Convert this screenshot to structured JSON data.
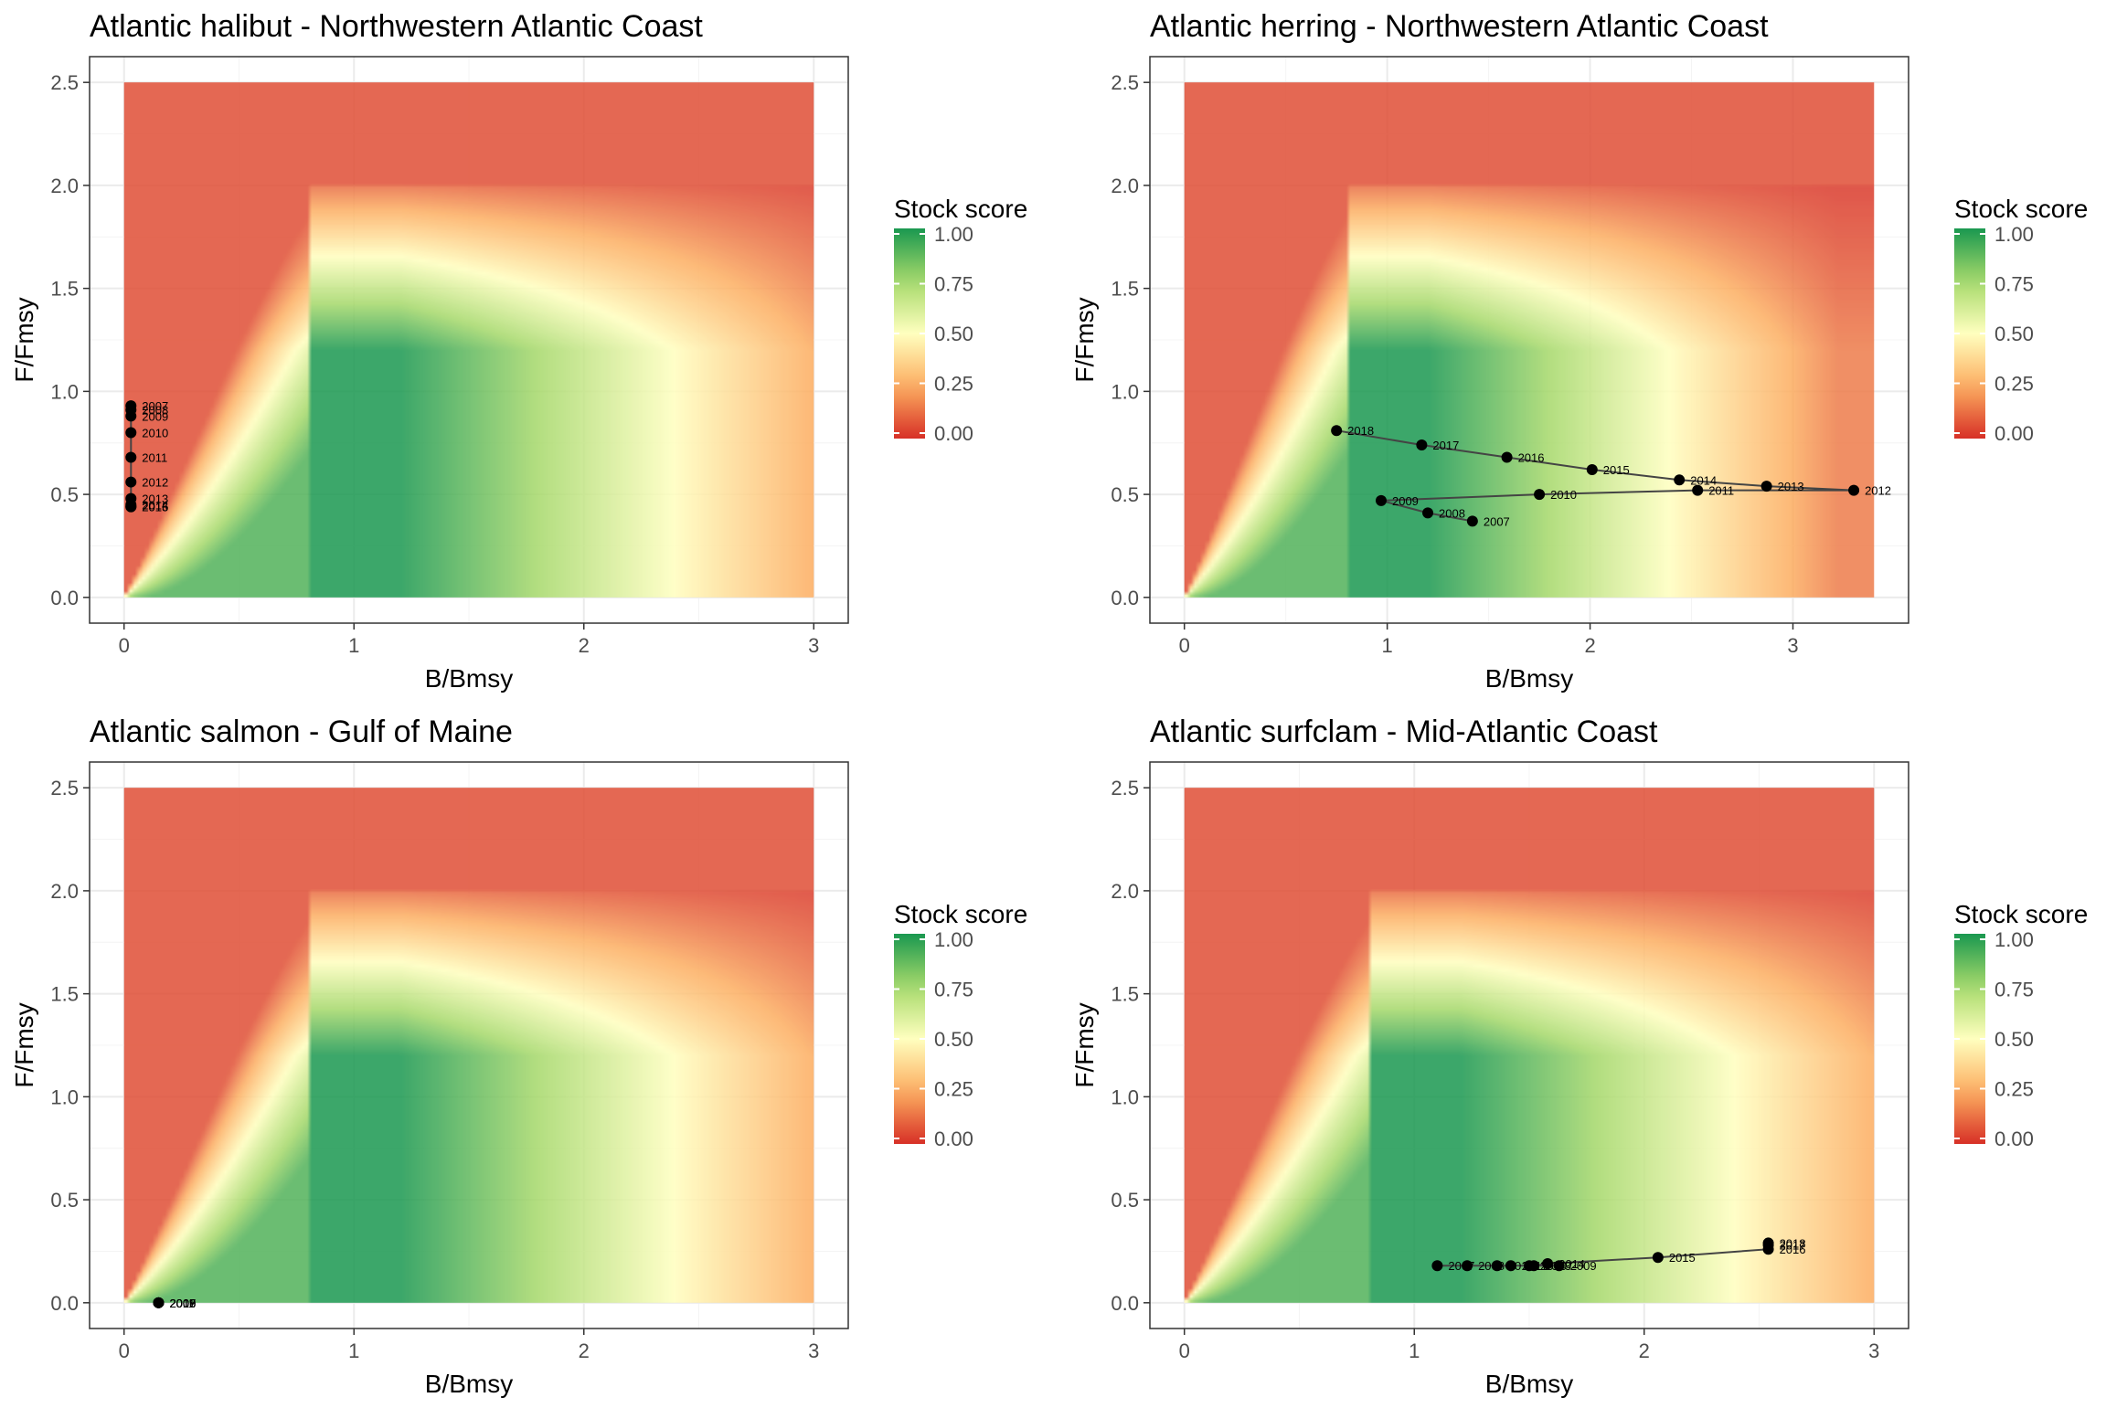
{
  "colors": {
    "score_gradient": [
      "#d73027",
      "#fdae61",
      "#ffffbf",
      "#a6d96a",
      "#1a9850"
    ],
    "panel_border": "#333333",
    "grid_major": "#ebebeb",
    "point": "#000000",
    "path": "#444444"
  },
  "legend": {
    "title": "Stock score",
    "ticks": [
      "1.00",
      "0.75",
      "0.50",
      "0.25",
      "0.00"
    ]
  },
  "chart_data": [
    {
      "type": "scatter",
      "title": "Atlantic halibut - Northwestern Atlantic Coast",
      "xlabel": "B/Bmsy",
      "ylabel": "F/Fmsy",
      "xlim": [
        0,
        3
      ],
      "ylim": [
        0,
        2.5
      ],
      "xticks": [
        "0",
        "1",
        "2",
        "3"
      ],
      "yticks": [
        "0.0",
        "0.5",
        "1.0",
        "1.5",
        "2.0",
        "2.5"
      ],
      "background": "stock score heatmap",
      "points": [
        {
          "year": "2007",
          "x": 0.03,
          "y": 0.93
        },
        {
          "year": "2008",
          "x": 0.03,
          "y": 0.91
        },
        {
          "year": "2009",
          "x": 0.03,
          "y": 0.88
        },
        {
          "year": "2010",
          "x": 0.03,
          "y": 0.8
        },
        {
          "year": "2011",
          "x": 0.03,
          "y": 0.68
        },
        {
          "year": "2012",
          "x": 0.03,
          "y": 0.56
        },
        {
          "year": "2013",
          "x": 0.03,
          "y": 0.48
        },
        {
          "year": "2014",
          "x": 0.03,
          "y": 0.45
        },
        {
          "year": "2015",
          "x": 0.03,
          "y": 0.44
        },
        {
          "year": "2016",
          "x": 0.03,
          "y": 0.44
        }
      ]
    },
    {
      "type": "scatter",
      "title": "Atlantic herring - Northwestern Atlantic Coast",
      "xlabel": "B/Bmsy",
      "ylabel": "F/Fmsy",
      "xlim": [
        0,
        3.4
      ],
      "ylim": [
        0,
        2.5
      ],
      "xticks": [
        "0",
        "1",
        "2",
        "3"
      ],
      "yticks": [
        "0.0",
        "0.5",
        "1.0",
        "1.5",
        "2.0",
        "2.5"
      ],
      "background": "stock score heatmap",
      "points": [
        {
          "year": "2007",
          "x": 1.42,
          "y": 0.37
        },
        {
          "year": "2008",
          "x": 1.2,
          "y": 0.41
        },
        {
          "year": "2009",
          "x": 0.97,
          "y": 0.47
        },
        {
          "year": "2010",
          "x": 1.75,
          "y": 0.5
        },
        {
          "year": "2011",
          "x": 2.53,
          "y": 0.52
        },
        {
          "year": "2012",
          "x": 3.3,
          "y": 0.52
        },
        {
          "year": "2013",
          "x": 2.87,
          "y": 0.54
        },
        {
          "year": "2014",
          "x": 2.44,
          "y": 0.57
        },
        {
          "year": "2015",
          "x": 2.01,
          "y": 0.62
        },
        {
          "year": "2016",
          "x": 1.59,
          "y": 0.68
        },
        {
          "year": "2017",
          "x": 1.17,
          "y": 0.74
        },
        {
          "year": "2018",
          "x": 0.75,
          "y": 0.81
        }
      ]
    },
    {
      "type": "scatter",
      "title": "Atlantic salmon - Gulf of Maine",
      "xlabel": "B/Bmsy",
      "ylabel": "F/Fmsy",
      "xlim": [
        0,
        3
      ],
      "ylim": [
        0,
        2.5
      ],
      "xticks": [
        "0",
        "1",
        "2",
        "3"
      ],
      "yticks": [
        "0.0",
        "0.5",
        "1.0",
        "1.5",
        "2.0",
        "2.5"
      ],
      "background": "stock score heatmap",
      "points": [
        {
          "year": "2007",
          "x": 0.15,
          "y": 0.0
        },
        {
          "year": "2008",
          "x": 0.15,
          "y": 0.0
        },
        {
          "year": "2009",
          "x": 0.15,
          "y": 0.0
        },
        {
          "year": "2010",
          "x": 0.15,
          "y": 0.0
        },
        {
          "year": "2011",
          "x": 0.15,
          "y": 0.0
        }
      ]
    },
    {
      "type": "scatter",
      "title": "Atlantic surfclam - Mid-Atlantic Coast",
      "xlabel": "B/Bmsy",
      "ylabel": "F/Fmsy",
      "xlim": [
        0,
        3
      ],
      "ylim": [
        0,
        2.5
      ],
      "xticks": [
        "0",
        "1",
        "2",
        "3"
      ],
      "yticks": [
        "0.0",
        "0.5",
        "1.0",
        "1.5",
        "2.0",
        "2.5"
      ],
      "background": "stock score heatmap",
      "points": [
        {
          "year": "2007",
          "x": 1.1,
          "y": 0.18
        },
        {
          "year": "2008",
          "x": 1.23,
          "y": 0.18
        },
        {
          "year": "2009",
          "x": 1.63,
          "y": 0.18
        },
        {
          "year": "2010",
          "x": 1.5,
          "y": 0.18
        },
        {
          "year": "2011",
          "x": 1.42,
          "y": 0.18
        },
        {
          "year": "2012",
          "x": 1.36,
          "y": 0.18
        },
        {
          "year": "2013",
          "x": 1.52,
          "y": 0.18
        },
        {
          "year": "2014",
          "x": 1.58,
          "y": 0.19
        },
        {
          "year": "2015",
          "x": 2.06,
          "y": 0.22
        },
        {
          "year": "2016",
          "x": 2.54,
          "y": 0.26
        },
        {
          "year": "2017",
          "x": 2.54,
          "y": 0.28
        },
        {
          "year": "2018",
          "x": 2.54,
          "y": 0.29
        }
      ]
    }
  ]
}
